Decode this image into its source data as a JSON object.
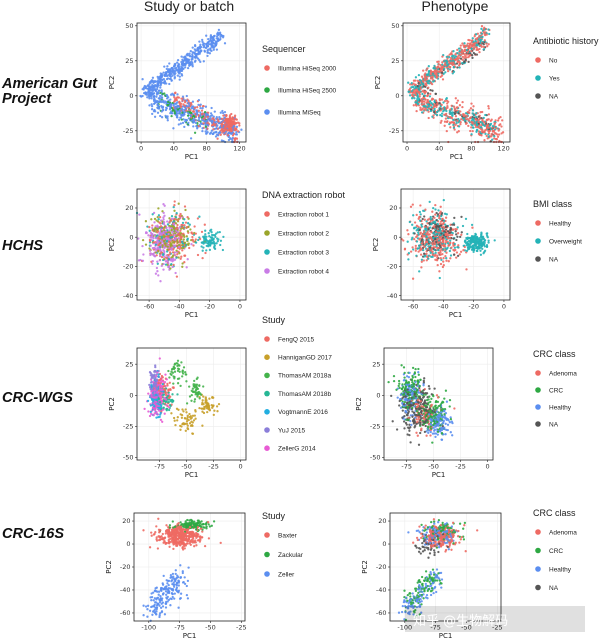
{
  "header": {
    "col_left": "Study or batch",
    "col_right": "Phenotype"
  },
  "rows": [
    {
      "label": [
        "American Gut",
        "Project"
      ]
    },
    {
      "label": [
        "HCHS"
      ]
    },
    {
      "label": [
        "CRC-WGS"
      ]
    },
    {
      "label": [
        "CRC-16S"
      ]
    }
  ],
  "watermark": "知乎 @生物解码",
  "chart_data": [
    {
      "type": "scatter",
      "row": 0,
      "col": 0,
      "xlabel": "PC1",
      "ylabel": "PC2",
      "xlim": [
        -5,
        128
      ],
      "ylim": [
        -33,
        52
      ],
      "xticks": [
        0,
        40,
        80,
        120
      ],
      "yticks": [
        50,
        25,
        0,
        -25
      ],
      "legend_title": "Sequencer",
      "series": [
        {
          "name": "Illumina HiSeq 2000",
          "color": "#ee6a63",
          "n": 320,
          "clusters": [
            {
              "shape": "band",
              "x0": 40,
              "x1": 118,
              "y0": -4,
              "y1": -28,
              "w": 3.5
            },
            {
              "shape": "blob",
              "cx": 108,
              "cy": -20,
              "rx": 10,
              "ry": 5
            }
          ]
        },
        {
          "name": "Illumina HiSeq 2500",
          "color": "#2ea843",
          "n": 60,
          "clusters": [
            {
              "shape": "band",
              "x0": 20,
              "x1": 80,
              "y0": -3,
              "y1": -20,
              "w": 4
            }
          ]
        },
        {
          "name": "Illumina MiSeq",
          "color": "#5b8ef0",
          "n": 900,
          "clusters": [
            {
              "shape": "band",
              "x0": 3,
              "x1": 100,
              "y0": 2,
              "y1": 44,
              "w": 3.5
            },
            {
              "shape": "band",
              "x0": 10,
              "x1": 115,
              "y0": -2,
              "y1": -26,
              "w": 5
            }
          ]
        }
      ]
    },
    {
      "type": "scatter",
      "row": 0,
      "col": 1,
      "xlabel": "PC1",
      "ylabel": "PC2",
      "xlim": [
        -5,
        128
      ],
      "ylim": [
        -33,
        52
      ],
      "xticks": [
        0,
        40,
        80,
        120
      ],
      "yticks": [
        50,
        25,
        0,
        -25
      ],
      "legend_title": "Antibiotic history",
      "series": [
        {
          "name": "No",
          "color": "#ee6a63",
          "n": 650,
          "clusters": [
            {
              "shape": "band",
              "x0": 3,
              "x1": 100,
              "y0": 2,
              "y1": 44,
              "w": 3.5
            },
            {
              "shape": "band",
              "x0": 10,
              "x1": 118,
              "y0": -2,
              "y1": -27,
              "w": 5
            }
          ]
        },
        {
          "name": "Yes",
          "color": "#23b3b7",
          "n": 380,
          "clusters": [
            {
              "shape": "band",
              "x0": 3,
              "x1": 100,
              "y0": 2,
              "y1": 44,
              "w": 3.5
            },
            {
              "shape": "band",
              "x0": 10,
              "x1": 110,
              "y0": -2,
              "y1": -25,
              "w": 4
            }
          ]
        },
        {
          "name": "NA",
          "color": "#555555",
          "n": 90,
          "clusters": [
            {
              "shape": "band",
              "x0": 10,
              "x1": 100,
              "y0": 2,
              "y1": 38,
              "w": 3
            },
            {
              "shape": "band",
              "x0": 20,
              "x1": 110,
              "y0": -3,
              "y1": -24,
              "w": 4
            }
          ]
        }
      ]
    },
    {
      "type": "scatter",
      "row": 1,
      "col": 0,
      "xlabel": "PC1",
      "ylabel": "PC2",
      "xlim": [
        -68,
        4
      ],
      "ylim": [
        -43,
        33
      ],
      "xticks": [
        -60,
        -40,
        -20,
        0
      ],
      "yticks": [
        20,
        0,
        -20,
        -40
      ],
      "legend_title": "DNA extraction robot",
      "series": [
        {
          "name": "Extraction robot 1",
          "color": "#ee6a63",
          "n": 170,
          "clusters": [
            {
              "shape": "blob",
              "cx": -45,
              "cy": -2,
              "rx": 14,
              "ry": 16
            }
          ]
        },
        {
          "name": "Extraction robot 2",
          "color": "#9aa52a",
          "n": 200,
          "clusters": [
            {
              "shape": "blob",
              "cx": -46,
              "cy": 0,
              "rx": 14,
              "ry": 17
            }
          ]
        },
        {
          "name": "Extraction robot 3",
          "color": "#23b3b7",
          "n": 170,
          "clusters": [
            {
              "shape": "blob",
              "cx": -47,
              "cy": 1,
              "rx": 14,
              "ry": 16
            },
            {
              "shape": "blob",
              "cx": -20,
              "cy": -2,
              "rx": 8,
              "ry": 6
            }
          ]
        },
        {
          "name": "Extraction robot 4",
          "color": "#c97ce6",
          "n": 260,
          "clusters": [
            {
              "shape": "blob",
              "cx": -50,
              "cy": -3,
              "rx": 12,
              "ry": 17
            }
          ]
        }
      ]
    },
    {
      "type": "scatter",
      "row": 1,
      "col": 1,
      "xlabel": "PC1",
      "ylabel": "PC2",
      "xlim": [
        -68,
        4
      ],
      "ylim": [
        -43,
        33
      ],
      "xticks": [
        -60,
        -40,
        -20,
        0
      ],
      "yticks": [
        20,
        0,
        -20,
        -40
      ],
      "legend_title": "BMI class",
      "series": [
        {
          "name": "Healthy",
          "color": "#ee6a63",
          "n": 330,
          "clusters": [
            {
              "shape": "blob",
              "cx": -45,
              "cy": -1,
              "rx": 15,
              "ry": 16
            }
          ]
        },
        {
          "name": "Overweight",
          "color": "#23b3b7",
          "n": 390,
          "clusters": [
            {
              "shape": "blob",
              "cx": -46,
              "cy": 0,
              "rx": 15,
              "ry": 16
            },
            {
              "shape": "blob",
              "cx": -18,
              "cy": -4,
              "rx": 7,
              "ry": 6
            }
          ]
        },
        {
          "name": "NA",
          "color": "#555555",
          "n": 120,
          "clusters": [
            {
              "shape": "blob",
              "cx": -44,
              "cy": 2,
              "rx": 13,
              "ry": 14
            }
          ]
        }
      ]
    },
    {
      "type": "scatter",
      "row": 2,
      "col": 0,
      "xlabel": "PC1",
      "ylabel": "PC2",
      "xlim": [
        -96,
        5
      ],
      "ylim": [
        -52,
        38
      ],
      "xticks": [
        -75,
        -50,
        -25,
        0
      ],
      "yticks": [
        25,
        0,
        -25,
        -50
      ],
      "legend_title": "Study",
      "series": [
        {
          "name": "FengQ 2015",
          "color": "#ee6a63",
          "n": 80,
          "clusters": [
            {
              "shape": "blob",
              "cx": -72,
              "cy": 4,
              "rx": 8,
              "ry": 12
            }
          ]
        },
        {
          "name": "HanniganGD 2017",
          "color": "#c8a02a",
          "n": 110,
          "clusters": [
            {
              "shape": "blob",
              "cx": -50,
              "cy": -20,
              "rx": 12,
              "ry": 10
            },
            {
              "shape": "blob",
              "cx": -30,
              "cy": -8,
              "rx": 8,
              "ry": 6
            }
          ]
        },
        {
          "name": "ThomasAM 2018a",
          "color": "#44b34b",
          "n": 90,
          "clusters": [
            {
              "shape": "blob",
              "cx": -58,
              "cy": 18,
              "rx": 8,
              "ry": 10
            },
            {
              "shape": "blob",
              "cx": -42,
              "cy": 4,
              "rx": 6,
              "ry": 8
            }
          ]
        },
        {
          "name": "ThomasAM 2018b",
          "color": "#26b795",
          "n": 50,
          "clusters": [
            {
              "shape": "blob",
              "cx": -70,
              "cy": -5,
              "rx": 8,
              "ry": 10
            }
          ]
        },
        {
          "name": "VogtmannE 2016",
          "color": "#21aee0",
          "n": 90,
          "clusters": [
            {
              "shape": "blob",
              "cx": -78,
              "cy": -2,
              "rx": 6,
              "ry": 16
            }
          ]
        },
        {
          "name": "YuJ 2015",
          "color": "#8b7ed9",
          "n": 100,
          "clusters": [
            {
              "shape": "blob",
              "cx": -80,
              "cy": 6,
              "rx": 5,
              "ry": 14
            }
          ]
        },
        {
          "name": "ZellerG 2014",
          "color": "#e85bd4",
          "n": 160,
          "clusters": [
            {
              "shape": "blob",
              "cx": -77,
              "cy": 0,
              "rx": 8,
              "ry": 16
            }
          ]
        }
      ]
    },
    {
      "type": "scatter",
      "row": 2,
      "col": 1,
      "xlabel": "PC1",
      "ylabel": "PC2",
      "xlim": [
        -96,
        5
      ],
      "ylim": [
        -52,
        38
      ],
      "xticks": [
        -75,
        -50,
        -25,
        0
      ],
      "yticks": [
        25,
        0,
        -25,
        -50
      ],
      "legend_title": "CRC class",
      "series": [
        {
          "name": "Adenoma",
          "color": "#ee6a63",
          "n": 80,
          "clusters": [
            {
              "shape": "blob",
              "cx": -60,
              "cy": -15,
              "rx": 14,
              "ry": 14
            }
          ]
        },
        {
          "name": "CRC",
          "color": "#2ea843",
          "n": 280,
          "clusters": [
            {
              "shape": "blob",
              "cx": -72,
              "cy": 5,
              "rx": 11,
              "ry": 16
            },
            {
              "shape": "blob",
              "cx": -50,
              "cy": -15,
              "rx": 12,
              "ry": 12
            }
          ]
        },
        {
          "name": "Healthy",
          "color": "#5b8ef0",
          "n": 260,
          "clusters": [
            {
              "shape": "blob",
              "cx": -72,
              "cy": 0,
              "rx": 10,
              "ry": 16
            },
            {
              "shape": "blob",
              "cx": -45,
              "cy": -22,
              "rx": 10,
              "ry": 10
            }
          ]
        },
        {
          "name": "NA",
          "color": "#555555",
          "n": 200,
          "clusters": [
            {
              "shape": "blob",
              "cx": -65,
              "cy": -10,
              "rx": 14,
              "ry": 18
            }
          ]
        }
      ]
    },
    {
      "type": "scatter",
      "row": 3,
      "col": 0,
      "xlabel": "PC1",
      "ylabel": "PC2",
      "xlim": [
        -112,
        -22
      ],
      "ylim": [
        -67,
        27
      ],
      "xticks": [
        -100,
        -75,
        -50,
        -25
      ],
      "yticks": [
        20,
        0,
        -20,
        -40,
        -60
      ],
      "legend_title": "Study",
      "series": [
        {
          "name": "Baxter",
          "color": "#ee6a63",
          "n": 420,
          "clusters": [
            {
              "shape": "blob",
              "cx": -75,
              "cy": 7,
              "rx": 16,
              "ry": 8
            }
          ]
        },
        {
          "name": "Zackular",
          "color": "#2ea843",
          "n": 120,
          "clusters": [
            {
              "shape": "blob",
              "cx": -66,
              "cy": 16,
              "rx": 12,
              "ry": 4
            }
          ]
        },
        {
          "name": "Zeller",
          "color": "#5b8ef0",
          "n": 190,
          "clusters": [
            {
              "shape": "band",
              "x0": -100,
              "x1": -72,
              "y0": -60,
              "y1": -28,
              "w": 6
            }
          ]
        }
      ]
    },
    {
      "type": "scatter",
      "row": 3,
      "col": 1,
      "xlabel": "PC1",
      "ylabel": "PC2",
      "xlim": [
        -112,
        -22
      ],
      "ylim": [
        -67,
        27
      ],
      "xticks": [
        -100,
        -75,
        -50,
        -25
      ],
      "yticks": [
        20,
        0,
        -20,
        -40,
        -60
      ],
      "legend_title": "CRC class",
      "series": [
        {
          "name": "Adenoma",
          "color": "#ee6a63",
          "n": 230,
          "clusters": [
            {
              "shape": "blob",
              "cx": -72,
              "cy": 6,
              "rx": 15,
              "ry": 9
            }
          ]
        },
        {
          "name": "CRC",
          "color": "#2ea843",
          "n": 200,
          "clusters": [
            {
              "shape": "blob",
              "cx": -70,
              "cy": 10,
              "rx": 13,
              "ry": 8
            },
            {
              "shape": "band",
              "x0": -98,
              "x1": -74,
              "y0": -55,
              "y1": -28,
              "w": 5
            }
          ]
        },
        {
          "name": "Healthy",
          "color": "#5b8ef0",
          "n": 230,
          "clusters": [
            {
              "shape": "blob",
              "cx": -74,
              "cy": 8,
              "rx": 14,
              "ry": 8
            },
            {
              "shape": "band",
              "x0": -100,
              "x1": -72,
              "y0": -60,
              "y1": -26,
              "w": 5
            }
          ]
        },
        {
          "name": "NA",
          "color": "#555555",
          "n": 50,
          "clusters": [
            {
              "shape": "blob",
              "cx": -80,
              "cy": 0,
              "rx": 10,
              "ry": 10
            }
          ]
        }
      ]
    }
  ]
}
